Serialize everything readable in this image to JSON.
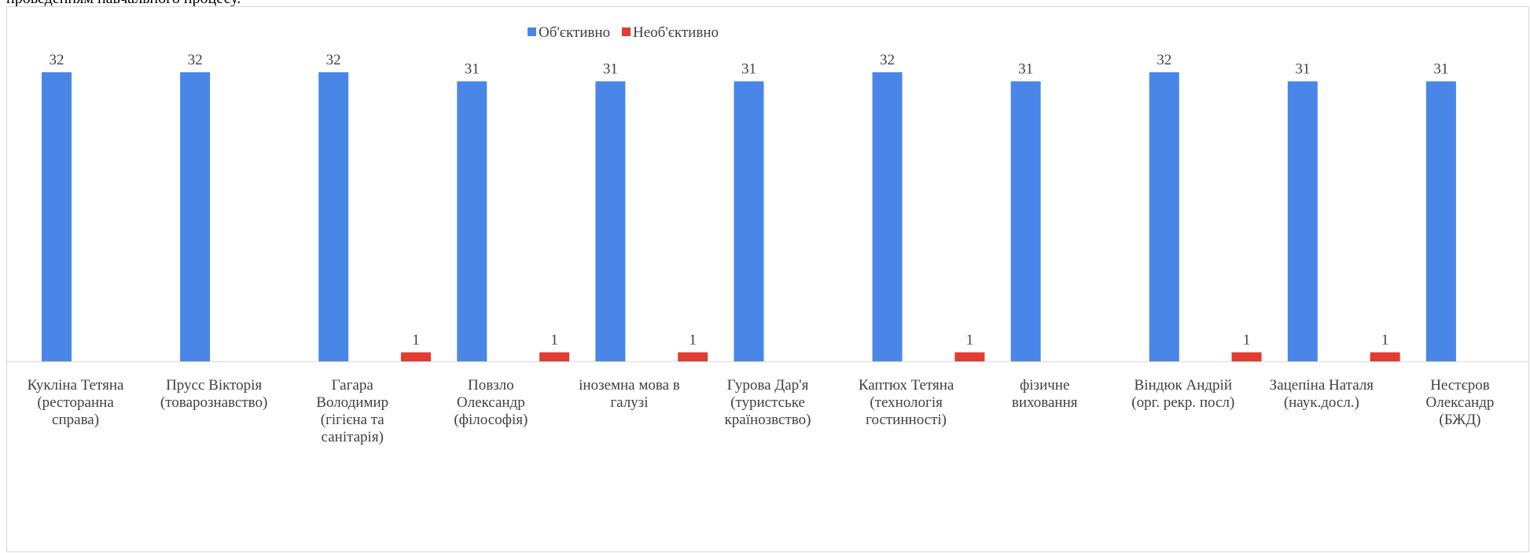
{
  "page": {
    "top_text": "проведенням навчального процесу."
  },
  "colors": {
    "objective": "#4a86e8",
    "not_objective": "#e03c31",
    "axis": "#d9d9d9",
    "label": "#404040"
  },
  "chart_data": {
    "type": "bar",
    "title": "",
    "xlabel": "",
    "ylabel": "",
    "ylim": [
      0,
      34
    ],
    "grid": false,
    "legend_position": "top-center",
    "categories": [
      "Кукліна Тетяна (ресторанна справа)",
      "Прусс Вікторія (товарознавство)",
      "Гагара Володимир (гігієна та санітарія)",
      "Повзло Олександр (філософія)",
      "іноземна мова в галузі",
      "Гурова Дар'я (туристське країнозвство)",
      "Каптюх Тетяна (технологія гостинності)",
      "фізичне виховання",
      "Віндюк Андрій (орг. рекр. посл)",
      "Зацепіна Наталя (наук.досл.)",
      "Нестєров Олександр (БЖД)"
    ],
    "category_lines": [
      [
        "Кукліна Тетяна",
        "(ресторанна",
        "справа)"
      ],
      [
        "Прусс Вікторія",
        "(товарознавство)"
      ],
      [
        "Гагара",
        "Володимир",
        "(гігієна та",
        "санітарія)"
      ],
      [
        "Повзло",
        "Олександр",
        "(філософія)"
      ],
      [
        "іноземна мова в",
        "галузі"
      ],
      [
        "Гурова Дар'я",
        "(туристське",
        "країнозвство)"
      ],
      [
        "Каптюх Тетяна",
        "(технологія",
        "гостинності)"
      ],
      [
        "фізичне",
        "виховання"
      ],
      [
        "Віндюк Андрій",
        "(орг. рекр. посл)"
      ],
      [
        "Зацепіна Наталя",
        "(наук.досл.)"
      ],
      [
        "Нестєров",
        "Олександр",
        "(БЖД)"
      ]
    ],
    "series": [
      {
        "name": "Об'єктивно",
        "values": [
          32,
          32,
          32,
          31,
          31,
          31,
          32,
          31,
          32,
          31,
          31
        ]
      },
      {
        "name": "Необ'єктивно",
        "values": [
          null,
          null,
          null,
          1,
          1,
          1,
          null,
          1,
          null,
          1,
          1
        ]
      }
    ]
  }
}
